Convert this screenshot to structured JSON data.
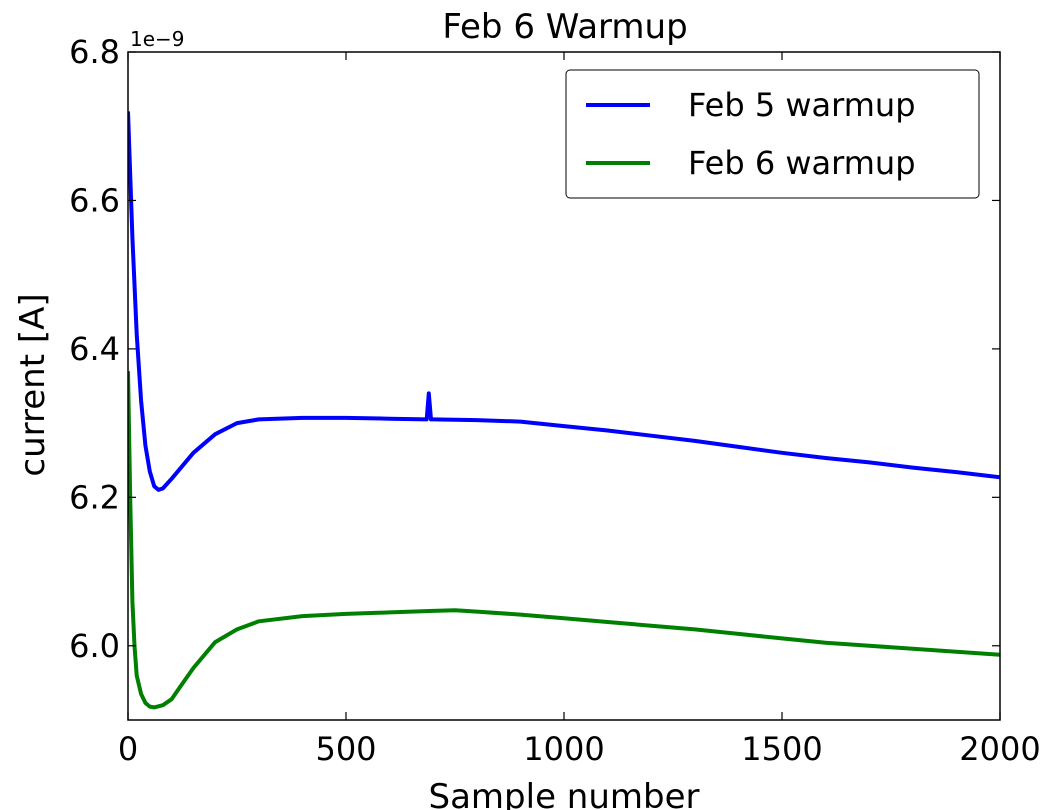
{
  "chart_data": {
    "type": "line",
    "title": "Feb 6 Warmup",
    "xlabel": "Sample number",
    "ylabel": "current [A]",
    "y_multiplier_label": "1e−9",
    "xlim": [
      0,
      2000
    ],
    "ylim": [
      5.9,
      6.8
    ],
    "xticks": [
      0,
      500,
      1000,
      1500,
      2000
    ],
    "xtick_labels": [
      "0",
      "500",
      "1000",
      "1500",
      "2000"
    ],
    "yticks": [
      6.0,
      6.2,
      6.4,
      6.6,
      6.8
    ],
    "ytick_labels": [
      "6.0",
      "6.2",
      "6.4",
      "6.6",
      "6.8"
    ],
    "grid": false,
    "legend_position": "top-right",
    "series": [
      {
        "name": "Feb 5 warmup",
        "color": "#0000ff",
        "x": [
          0,
          10,
          20,
          30,
          40,
          50,
          60,
          70,
          80,
          100,
          150,
          200,
          250,
          300,
          400,
          500,
          600,
          685,
          690,
          695,
          700,
          800,
          900,
          1000,
          1100,
          1200,
          1300,
          1400,
          1500,
          1600,
          1700,
          1800,
          1900,
          2000
        ],
        "values": [
          6.72,
          6.55,
          6.42,
          6.33,
          6.27,
          6.235,
          6.215,
          6.21,
          6.212,
          6.225,
          6.26,
          6.285,
          6.3,
          6.305,
          6.307,
          6.307,
          6.306,
          6.305,
          6.34,
          6.305,
          6.305,
          6.304,
          6.302,
          6.296,
          6.29,
          6.283,
          6.276,
          6.268,
          6.26,
          6.253,
          6.247,
          6.24,
          6.234,
          6.227
        ]
      },
      {
        "name": "Feb 6 warmup",
        "color": "#008000",
        "x": [
          0,
          5,
          10,
          15,
          20,
          30,
          40,
          50,
          60,
          80,
          100,
          120,
          150,
          200,
          250,
          300,
          400,
          500,
          600,
          700,
          750,
          800,
          900,
          1000,
          1100,
          1200,
          1300,
          1400,
          1500,
          1600,
          1700,
          1800,
          1900,
          2000
        ],
        "values": [
          6.37,
          6.2,
          6.06,
          6.0,
          5.96,
          5.935,
          5.923,
          5.918,
          5.917,
          5.92,
          5.928,
          5.945,
          5.97,
          6.005,
          6.022,
          6.033,
          6.04,
          6.043,
          6.045,
          6.047,
          6.048,
          6.046,
          6.042,
          6.037,
          6.032,
          6.027,
          6.022,
          6.016,
          6.01,
          6.004,
          6.0,
          5.996,
          5.992,
          5.988
        ]
      }
    ]
  }
}
